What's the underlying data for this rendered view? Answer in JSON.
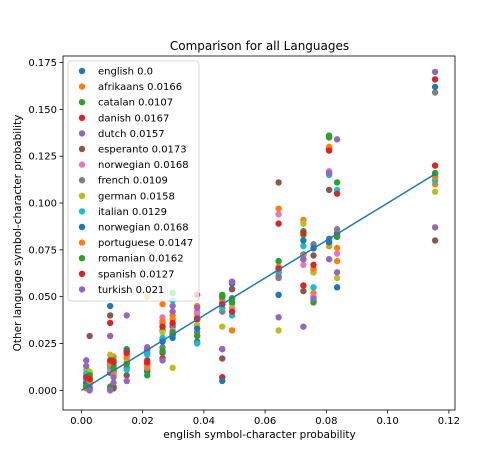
{
  "chart_data": {
    "type": "scatter",
    "title": "Comparison for all Languages",
    "xlabel": "english symbol-character probability",
    "ylabel": "Other language symbol-character probability",
    "xlim": [
      -0.006,
      0.122
    ],
    "ylim": [
      -0.0105,
      0.1785
    ],
    "x_ticks": [
      0.0,
      0.02,
      0.04,
      0.06,
      0.08,
      0.1,
      0.12
    ],
    "x_tick_labels": [
      "0.00",
      "0.02",
      "0.04",
      "0.06",
      "0.08",
      "0.10",
      "0.12"
    ],
    "y_ticks": [
      0.0,
      0.025,
      0.05,
      0.075,
      0.1,
      0.125,
      0.15,
      0.175
    ],
    "y_tick_labels": [
      "0.000",
      "0.025",
      "0.050",
      "0.075",
      "0.100",
      "0.125",
      "0.150",
      "0.175"
    ],
    "grid": false,
    "legend_position": "upper-left",
    "fit_line": {
      "x": [
        0.0,
        0.1155
      ],
      "y": [
        0.0,
        0.1155
      ],
      "color": "#1f77b4"
    },
    "series": [
      {
        "name": "english 0.0",
        "color": "#1f77b4",
        "x": [
          0.0016,
          0.0027,
          0.0094,
          0.0105,
          0.0148,
          0.0215,
          0.0265,
          0.0298,
          0.0378,
          0.046,
          0.0492,
          0.0644,
          0.0725,
          0.0758,
          0.0809,
          0.0835,
          0.1155
        ],
        "y": [
          0.0016,
          0.0027,
          0.0094,
          0.0105,
          0.0148,
          0.0215,
          0.0265,
          0.0298,
          0.0378,
          0.046,
          0.0492,
          0.0644,
          0.0725,
          0.0758,
          0.0809,
          0.0835,
          0.1155
        ]
      },
      {
        "name": "afrikaans 0.0166",
        "color": "#ff7f0e",
        "x": [
          0.0016,
          0.0027,
          0.0094,
          0.0105,
          0.0148,
          0.0215,
          0.0265,
          0.0298,
          0.0378,
          0.046,
          0.0492,
          0.0644,
          0.0725,
          0.0758,
          0.0809,
          0.0835,
          0.1155
        ],
        "y": [
          0.004,
          0.006,
          0.012,
          0.018,
          0.017,
          0.014,
          0.046,
          0.038,
          0.041,
          0.048,
          0.032,
          0.097,
          0.091,
          0.052,
          0.077,
          0.069,
          0.11
        ]
      },
      {
        "name": "catalan 0.0107",
        "color": "#2ca02c",
        "x": [
          0.0016,
          0.0027,
          0.0094,
          0.0105,
          0.0148,
          0.0215,
          0.0265,
          0.0298,
          0.0378,
          0.046,
          0.0492,
          0.0644,
          0.0725,
          0.0758,
          0.0809,
          0.0835,
          0.1155
        ],
        "y": [
          0.003,
          0.007,
          0.002,
          0.016,
          0.022,
          0.011,
          0.032,
          0.052,
          0.029,
          0.051,
          0.049,
          0.063,
          0.085,
          0.048,
          0.136,
          0.111,
          0.114
        ]
      },
      {
        "name": "danish 0.0167",
        "color": "#d62728",
        "x": [
          0.0016,
          0.0027,
          0.0094,
          0.0105,
          0.0148,
          0.0215,
          0.0265,
          0.0298,
          0.0378,
          0.046,
          0.0492,
          0.0644,
          0.0725,
          0.0758,
          0.0809,
          0.0835,
          0.1155
        ],
        "y": [
          0.006,
          0.004,
          0.036,
          0.002,
          0.012,
          0.016,
          0.017,
          0.03,
          0.051,
          0.007,
          0.054,
          0.089,
          0.056,
          0.063,
          0.129,
          0.082,
          0.12
        ]
      },
      {
        "name": "dutch 0.0157",
        "color": "#9467bd",
        "x": [
          0.0016,
          0.0027,
          0.0094,
          0.0105,
          0.0148,
          0.0215,
          0.0265,
          0.0298,
          0.0378,
          0.046,
          0.0492,
          0.0644,
          0.0725,
          0.0758,
          0.0809,
          0.0835,
          0.1155
        ],
        "y": [
          0.016,
          0.009,
          0.029,
          0.004,
          0.04,
          0.022,
          0.036,
          0.045,
          0.039,
          0.022,
          0.058,
          0.061,
          0.034,
          0.064,
          0.07,
          0.134,
          0.087
        ]
      },
      {
        "name": "esperanto 0.0173",
        "color": "#8c564b",
        "x": [
          0.0016,
          0.0027,
          0.0094,
          0.0105,
          0.0148,
          0.0215,
          0.0265,
          0.0298,
          0.0378,
          0.046,
          0.0492,
          0.0644,
          0.0725,
          0.0758,
          0.0809,
          0.0835,
          0.1155
        ],
        "y": [
          0.002,
          0.029,
          0.04,
          0.001,
          0.008,
          0.014,
          0.02,
          0.034,
          0.026,
          0.017,
          0.054,
          0.111,
          0.053,
          0.072,
          0.107,
          0.084,
          0.08
        ]
      },
      {
        "name": "norwegian 0.0168",
        "color": "#e377c2",
        "x": [
          0.0016,
          0.0027,
          0.0094,
          0.0105,
          0.0148,
          0.0215,
          0.0265,
          0.0298,
          0.0378,
          0.046,
          0.0492,
          0.0644,
          0.0725,
          0.0758,
          0.0809,
          0.0835,
          0.1155
        ],
        "y": [
          0.005,
          0.003,
          0.011,
          0.008,
          0.019,
          0.013,
          0.039,
          0.032,
          0.042,
          0.047,
          0.044,
          0.094,
          0.067,
          0.05,
          0.117,
          0.073,
          0.166
        ]
      },
      {
        "name": "french 0.0109",
        "color": "#7f7f7f",
        "x": [
          0.0016,
          0.0027,
          0.0094,
          0.0105,
          0.0148,
          0.0215,
          0.0265,
          0.0298,
          0.0378,
          0.046,
          0.0492,
          0.0644,
          0.0725,
          0.0758,
          0.0809,
          0.0835,
          0.1155
        ],
        "y": [
          0.008,
          0.001,
          0.015,
          0.013,
          0.021,
          0.02,
          0.023,
          0.035,
          0.031,
          0.042,
          0.047,
          0.06,
          0.07,
          0.078,
          0.08,
          0.086,
          0.159
        ]
      },
      {
        "name": "german 0.0158",
        "color": "#bcbd22",
        "x": [
          0.0016,
          0.0027,
          0.0094,
          0.0105,
          0.0148,
          0.0215,
          0.0265,
          0.0298,
          0.0378,
          0.046,
          0.0492,
          0.0644,
          0.0725,
          0.0758,
          0.0809,
          0.0835,
          0.1155
        ],
        "y": [
          0.011,
          0.01,
          0.019,
          0.011,
          0.015,
          0.05,
          0.031,
          0.012,
          0.035,
          0.034,
          0.046,
          0.032,
          0.089,
          0.063,
          0.078,
          0.06,
          0.106
        ]
      },
      {
        "name": "italian 0.0129",
        "color": "#17becf",
        "x": [
          0.0016,
          0.0027,
          0.0094,
          0.0105,
          0.0148,
          0.0215,
          0.0265,
          0.0298,
          0.0378,
          0.046,
          0.0492,
          0.0644,
          0.0725,
          0.0758,
          0.0809,
          0.0835,
          0.1155
        ],
        "y": [
          0.009,
          0.005,
          0.013,
          0.014,
          0.011,
          0.019,
          0.028,
          0.048,
          0.025,
          0.044,
          0.04,
          0.064,
          0.077,
          0.055,
          0.115,
          0.107,
          0.112
        ]
      },
      {
        "name": "norwegian 0.0168",
        "color": "#1f77b4",
        "x": [
          0.0016,
          0.0027,
          0.0094,
          0.0105,
          0.0148,
          0.0215,
          0.0265,
          0.0298,
          0.0378,
          0.046,
          0.0492,
          0.0644,
          0.0725,
          0.0758,
          0.0809,
          0.0835,
          0.1155
        ],
        "y": [
          0.004,
          0.001,
          0.045,
          0.01,
          0.021,
          0.01,
          0.026,
          0.028,
          0.033,
          0.005,
          0.057,
          0.051,
          0.08,
          0.076,
          0.079,
          0.055,
          0.162
        ]
      },
      {
        "name": "portuguese 0.0147",
        "color": "#ff7f0e",
        "x": [
          0.0016,
          0.0027,
          0.0094,
          0.0105,
          0.0148,
          0.0215,
          0.0265,
          0.0298,
          0.0378,
          0.046,
          0.0492,
          0.0644,
          0.0725,
          0.0758,
          0.0809,
          0.0835,
          0.1155
        ],
        "y": [
          0.001,
          0.005,
          0.014,
          0.009,
          0.018,
          0.012,
          0.037,
          0.04,
          0.045,
          0.049,
          0.032,
          0.066,
          0.072,
          0.065,
          0.13,
          0.076,
          0.114
        ]
      },
      {
        "name": "romanian 0.0162",
        "color": "#2ca02c",
        "x": [
          0.0016,
          0.0027,
          0.0094,
          0.0105,
          0.0148,
          0.0215,
          0.0265,
          0.0298,
          0.0378,
          0.046,
          0.0492,
          0.0644,
          0.0725,
          0.0758,
          0.0809,
          0.0835,
          0.1155
        ],
        "y": [
          0.002,
          0.008,
          0.001,
          0.012,
          0.014,
          0.008,
          0.021,
          0.031,
          0.029,
          0.05,
          0.047,
          0.069,
          0.083,
          0.047,
          0.135,
          0.082,
          0.116
        ]
      },
      {
        "name": "spanish 0.0127",
        "color": "#d62728",
        "x": [
          0.0016,
          0.0027,
          0.0094,
          0.0105,
          0.0148,
          0.0215,
          0.0265,
          0.0298,
          0.0378,
          0.046,
          0.0492,
          0.0644,
          0.0725,
          0.0758,
          0.0809,
          0.0835,
          0.1155
        ],
        "y": [
          0.007,
          0.006,
          0.016,
          0.015,
          0.02,
          0.015,
          0.034,
          0.036,
          0.038,
          0.046,
          0.042,
          0.065,
          0.084,
          0.067,
          0.128,
          0.105,
          0.166
        ]
      },
      {
        "name": "turkish 0.021",
        "color": "#9467bd",
        "x": [
          0.0016,
          0.0027,
          0.0094,
          0.0105,
          0.0148,
          0.0215,
          0.0265,
          0.0298,
          0.0378,
          0.046,
          0.0492,
          0.0644,
          0.0725,
          0.0758,
          0.0809,
          0.0835,
          0.1155
        ],
        "y": [
          0.013,
          0.0,
          0.0,
          0.007,
          0.005,
          0.023,
          0.016,
          0.042,
          0.044,
          0.022,
          0.058,
          0.039,
          0.07,
          0.049,
          0.116,
          0.063,
          0.17
        ]
      }
    ]
  }
}
